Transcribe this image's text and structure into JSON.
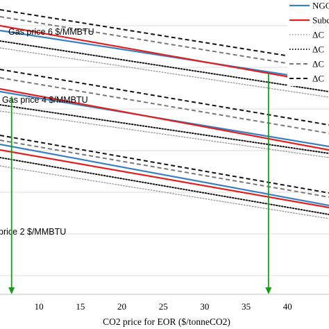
{
  "chart_data": {
    "type": "line",
    "title": "",
    "xlabel": "CO2 price for EOR ($/tonneCO2)",
    "ylabel": "",
    "xlim": [
      5.3,
      45
    ],
    "x_ticks": [
      10,
      15,
      20,
      25,
      30,
      35,
      40
    ],
    "grid": "horizontal",
    "legend_position": "top-right",
    "legend_entries": [
      "NGC",
      "Subc",
      "ΔC",
      "ΔC",
      "ΔC",
      "ΔC"
    ],
    "series_styles": [
      {
        "label": "NGC",
        "color": "#3a7fc1",
        "dash": "solid",
        "width": 2.2
      },
      {
        "label": "Subc",
        "color": "#e02020",
        "dash": "solid",
        "width": 2.2
      },
      {
        "label": "ΔC",
        "color": "#999999",
        "dash": "dotted",
        "width": 1.4
      },
      {
        "label": "ΔC",
        "color": "#111111",
        "dash": "dotted",
        "width": 2.0
      },
      {
        "label": "ΔC",
        "color": "#777777",
        "dash": "dashed",
        "width": 2.0
      },
      {
        "label": "ΔC",
        "color": "#111111",
        "dash": "dashed",
        "width": 2.0
      }
    ],
    "groups": [
      {
        "label": "Gas price 6 $/MMBTU",
        "lines": [
          {
            "style": 0,
            "x": [
              5.3,
              45
            ],
            "y": [
              380,
              307
            ]
          },
          {
            "style": 1,
            "x": [
              5.3,
              45
            ],
            "y": [
              387,
              303
            ]
          },
          {
            "style": 2,
            "x": [
              5.3,
              45
            ],
            "y": [
              355,
              284
            ]
          },
          {
            "style": 3,
            "x": [
              5.3,
              45
            ],
            "y": [
              365,
              292
            ]
          },
          {
            "style": 4,
            "x": [
              5.3,
              45
            ],
            "y": [
              400,
              323
            ]
          },
          {
            "style": 5,
            "x": [
              5.3,
              45
            ],
            "y": [
              410,
              334
            ]
          }
        ]
      },
      {
        "label": "Gas price 4 $/MMBTU",
        "lines": [
          {
            "style": 0,
            "x": [
              5.3,
              45
            ],
            "y": [
              292,
              213
            ]
          },
          {
            "style": 1,
            "x": [
              5.3,
              45
            ],
            "y": [
              296,
              208
            ]
          },
          {
            "style": 2,
            "x": [
              5.3,
              45
            ],
            "y": [
              264,
              197
            ]
          },
          {
            "style": 3,
            "x": [
              5.3,
              45
            ],
            "y": [
              273,
              203
            ]
          },
          {
            "style": 4,
            "x": [
              5.3,
              45
            ],
            "y": [
              312,
              232
            ]
          },
          {
            "style": 5,
            "x": [
              5.3,
              45
            ],
            "y": [
              324,
              244
            ]
          }
        ]
      },
      {
        "label": "price 2 $/MMBTU",
        "lines": [
          {
            "style": 0,
            "x": [
              5.3,
              45
            ],
            "y": [
              216,
              128
            ]
          },
          {
            "style": 1,
            "x": [
              5.3,
              45
            ],
            "y": [
              208,
              125
            ]
          },
          {
            "style": 2,
            "x": [
              5.3,
              45
            ],
            "y": [
              185,
              109
            ]
          },
          {
            "style": 3,
            "x": [
              5.3,
              45
            ],
            "y": [
              197,
              115
            ]
          },
          {
            "style": 4,
            "x": [
              5.3,
              45
            ],
            "y": [
              222,
              140
            ]
          },
          {
            "style": 5,
            "x": [
              5.3,
              45
            ],
            "y": [
              229,
              146
            ]
          }
        ]
      }
    ],
    "annotations": [
      {
        "color": "#1a9a1a",
        "x": 6.7,
        "y_top": 285,
        "y_bottom": 0,
        "arrow": "down"
      },
      {
        "color": "#1a9a1a",
        "x": 37.7,
        "y_top": 318,
        "y_bottom": 0,
        "arrow": "down"
      }
    ]
  }
}
